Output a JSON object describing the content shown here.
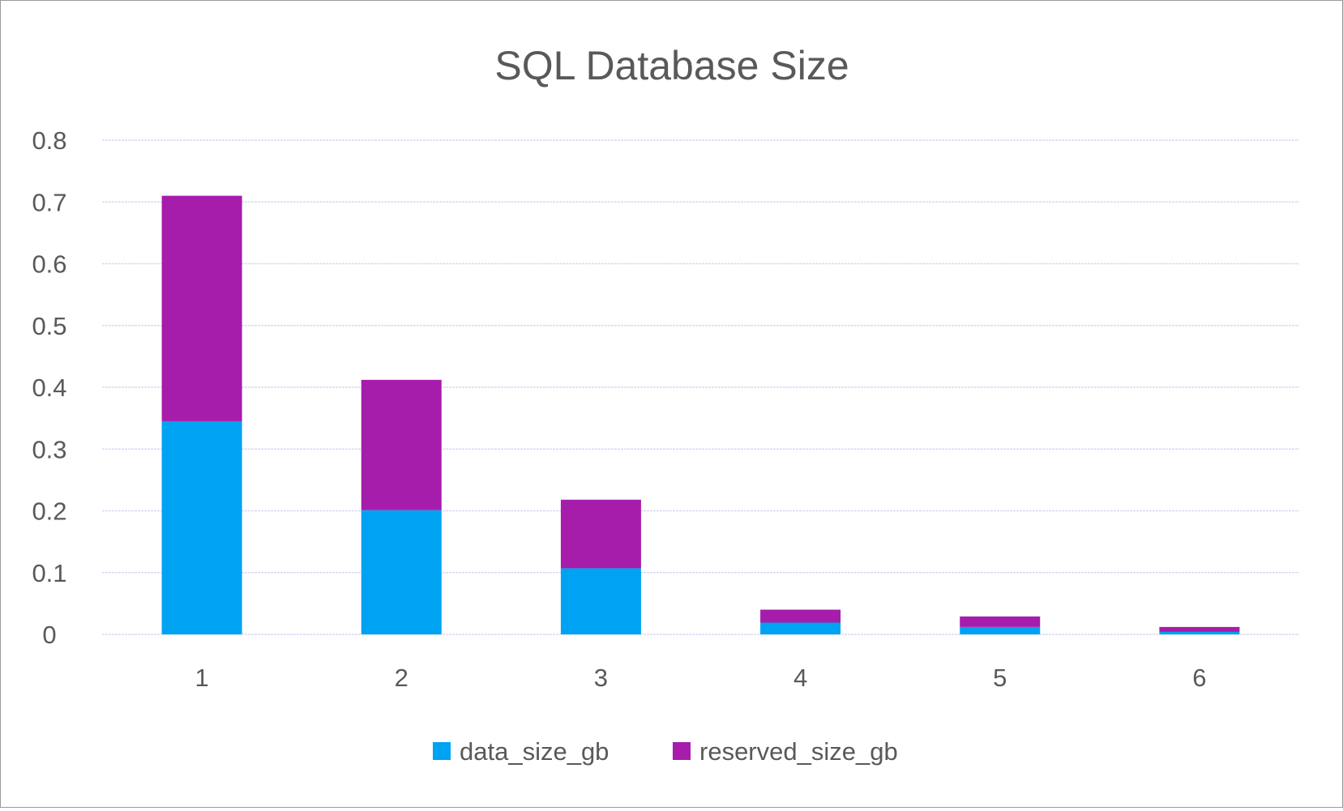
{
  "chart_data": {
    "type": "bar",
    "stacked": true,
    "title": "SQL Database Size",
    "xlabel": "",
    "ylabel": "",
    "categories": [
      "1",
      "2",
      "3",
      "4",
      "5",
      "6"
    ],
    "series": [
      {
        "name": "data_size_gb",
        "color": "#00A2F2",
        "values": [
          0.345,
          0.201,
          0.107,
          0.019,
          0.012,
          0.004
        ]
      },
      {
        "name": "reserved_size_gb",
        "color": "#A51DAA",
        "values": [
          0.365,
          0.211,
          0.111,
          0.021,
          0.017,
          0.008
        ]
      }
    ],
    "ylim": [
      0,
      0.8
    ],
    "yticks": [
      "0",
      "0.1",
      "0.2",
      "0.3",
      "0.4",
      "0.5",
      "0.6",
      "0.7",
      "0.8"
    ],
    "grid": true,
    "gridline_color": "#D9D9F5",
    "legend_position": "bottom"
  }
}
